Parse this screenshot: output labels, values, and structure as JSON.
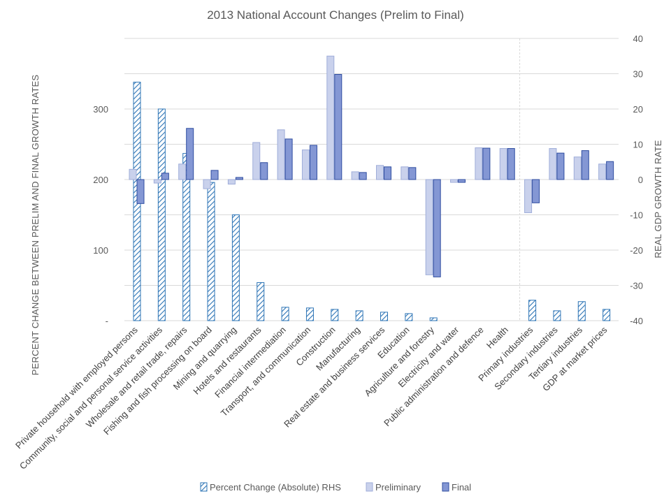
{
  "chart_data": {
    "type": "bar",
    "title": "2013 National Account Changes (Prelim to Final)",
    "ylabel_left": "PERCENT CHANGE BETWEEN PRELIM AND FINAL GROWTH RATES",
    "ylabel_right": "REAL GDP GROWTH RATE",
    "left_ticks": [
      "-",
      "100",
      "200",
      "300"
    ],
    "right_ticks": [
      "-40",
      "-30",
      "-20",
      "-10",
      "0",
      "10",
      "20",
      "30",
      "40"
    ],
    "ylim_left": [
      0,
      400
    ],
    "ylim_right": [
      -40,
      40
    ],
    "categories": [
      "Private household with employed persons",
      "Community, social and personal service activities",
      "Wholesale and retail trade, repairs",
      "Fishing and fish processing on board",
      "Mining and quarrying",
      "Hotels and restaurants",
      "Financial intermediation",
      "Transport, and communication",
      "Construction",
      "Manufacturing",
      "Real estate and business services",
      "Education",
      "Agriculture and forestry",
      "Electricity and water",
      "Public administration and defence",
      "Health",
      "Primary industries",
      "Secondary industries",
      "Tertiary industries",
      "GDP at market prices"
    ],
    "series": [
      {
        "name": "Percent Change (Absolute) RHS",
        "axis": "left",
        "pattern": "hatched",
        "values": [
          338,
          300,
          237,
          196,
          150,
          54,
          19,
          18,
          16,
          14,
          12,
          10,
          4,
          0,
          0,
          0,
          29,
          14,
          27,
          16
        ]
      },
      {
        "name": "Preliminary",
        "axis": "right",
        "values": [
          2.9,
          -1.0,
          4.4,
          -2.6,
          -1.3,
          10.5,
          14.1,
          8.4,
          35.0,
          2.2,
          4.0,
          3.6,
          -27.0,
          -0.8,
          9.0,
          8.8,
          -9.4,
          8.8,
          6.4,
          4.4
        ]
      },
      {
        "name": "Final",
        "axis": "right",
        "values": [
          -6.8,
          1.8,
          14.5,
          2.6,
          0.6,
          4.8,
          11.5,
          9.7,
          29.8,
          2.0,
          3.6,
          3.4,
          -27.6,
          -0.8,
          8.9,
          8.8,
          -6.6,
          7.5,
          8.2,
          5.1
        ]
      }
    ],
    "divider_after_category": 15,
    "grid": true,
    "legend_position": "bottom",
    "colors": {
      "hatch": "#2e75b6",
      "preliminary_fill": "#c9d1ec",
      "preliminary_stroke": "#9fadd9",
      "final_fill": "#8497d4",
      "final_stroke": "#2f4da0",
      "grid": "#d9d9d9"
    }
  }
}
